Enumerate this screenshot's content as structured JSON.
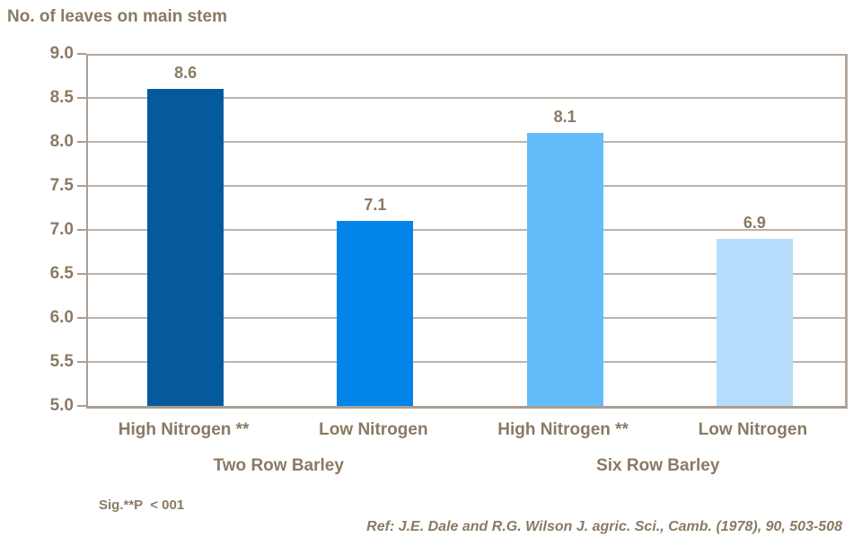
{
  "chart_data": {
    "type": "bar",
    "title": "No. of leaves on main stem",
    "categories": [
      "High Nitrogen **",
      "Low Nitrogen",
      "High Nitrogen **",
      "Low Nitrogen"
    ],
    "group_labels": [
      "Two Row Barley",
      "Six Row Barley"
    ],
    "values": [
      8.6,
      7.1,
      8.1,
      6.9
    ],
    "value_labels": [
      "8.6",
      "7.1",
      "8.1",
      "6.9"
    ],
    "bar_colors": [
      "#055a9e",
      "#0284e9",
      "#63bdfa",
      "#b6ddfb"
    ],
    "ylim": [
      5.0,
      9.0
    ],
    "ytick_labels": [
      "9.0",
      "8.5",
      "8.0",
      "7.5",
      "7.0",
      "6.5",
      "6.0",
      "5.5",
      "5.0"
    ],
    "xlabel": "",
    "ylabel": "No. of leaves on main stem",
    "grid": true,
    "legend": false
  },
  "footnotes": {
    "significance": "Sig.**P  < 001",
    "reference": "Ref: J.E. Dale and R.G. Wilson J. agric. Sci., Camb. (1978), 90, 503-508"
  },
  "colors": {
    "text": "#8a7a64",
    "grid": "#bdb2a8",
    "border": "#b3a89e",
    "axis": "#a99e94",
    "background": "#ffffff"
  }
}
